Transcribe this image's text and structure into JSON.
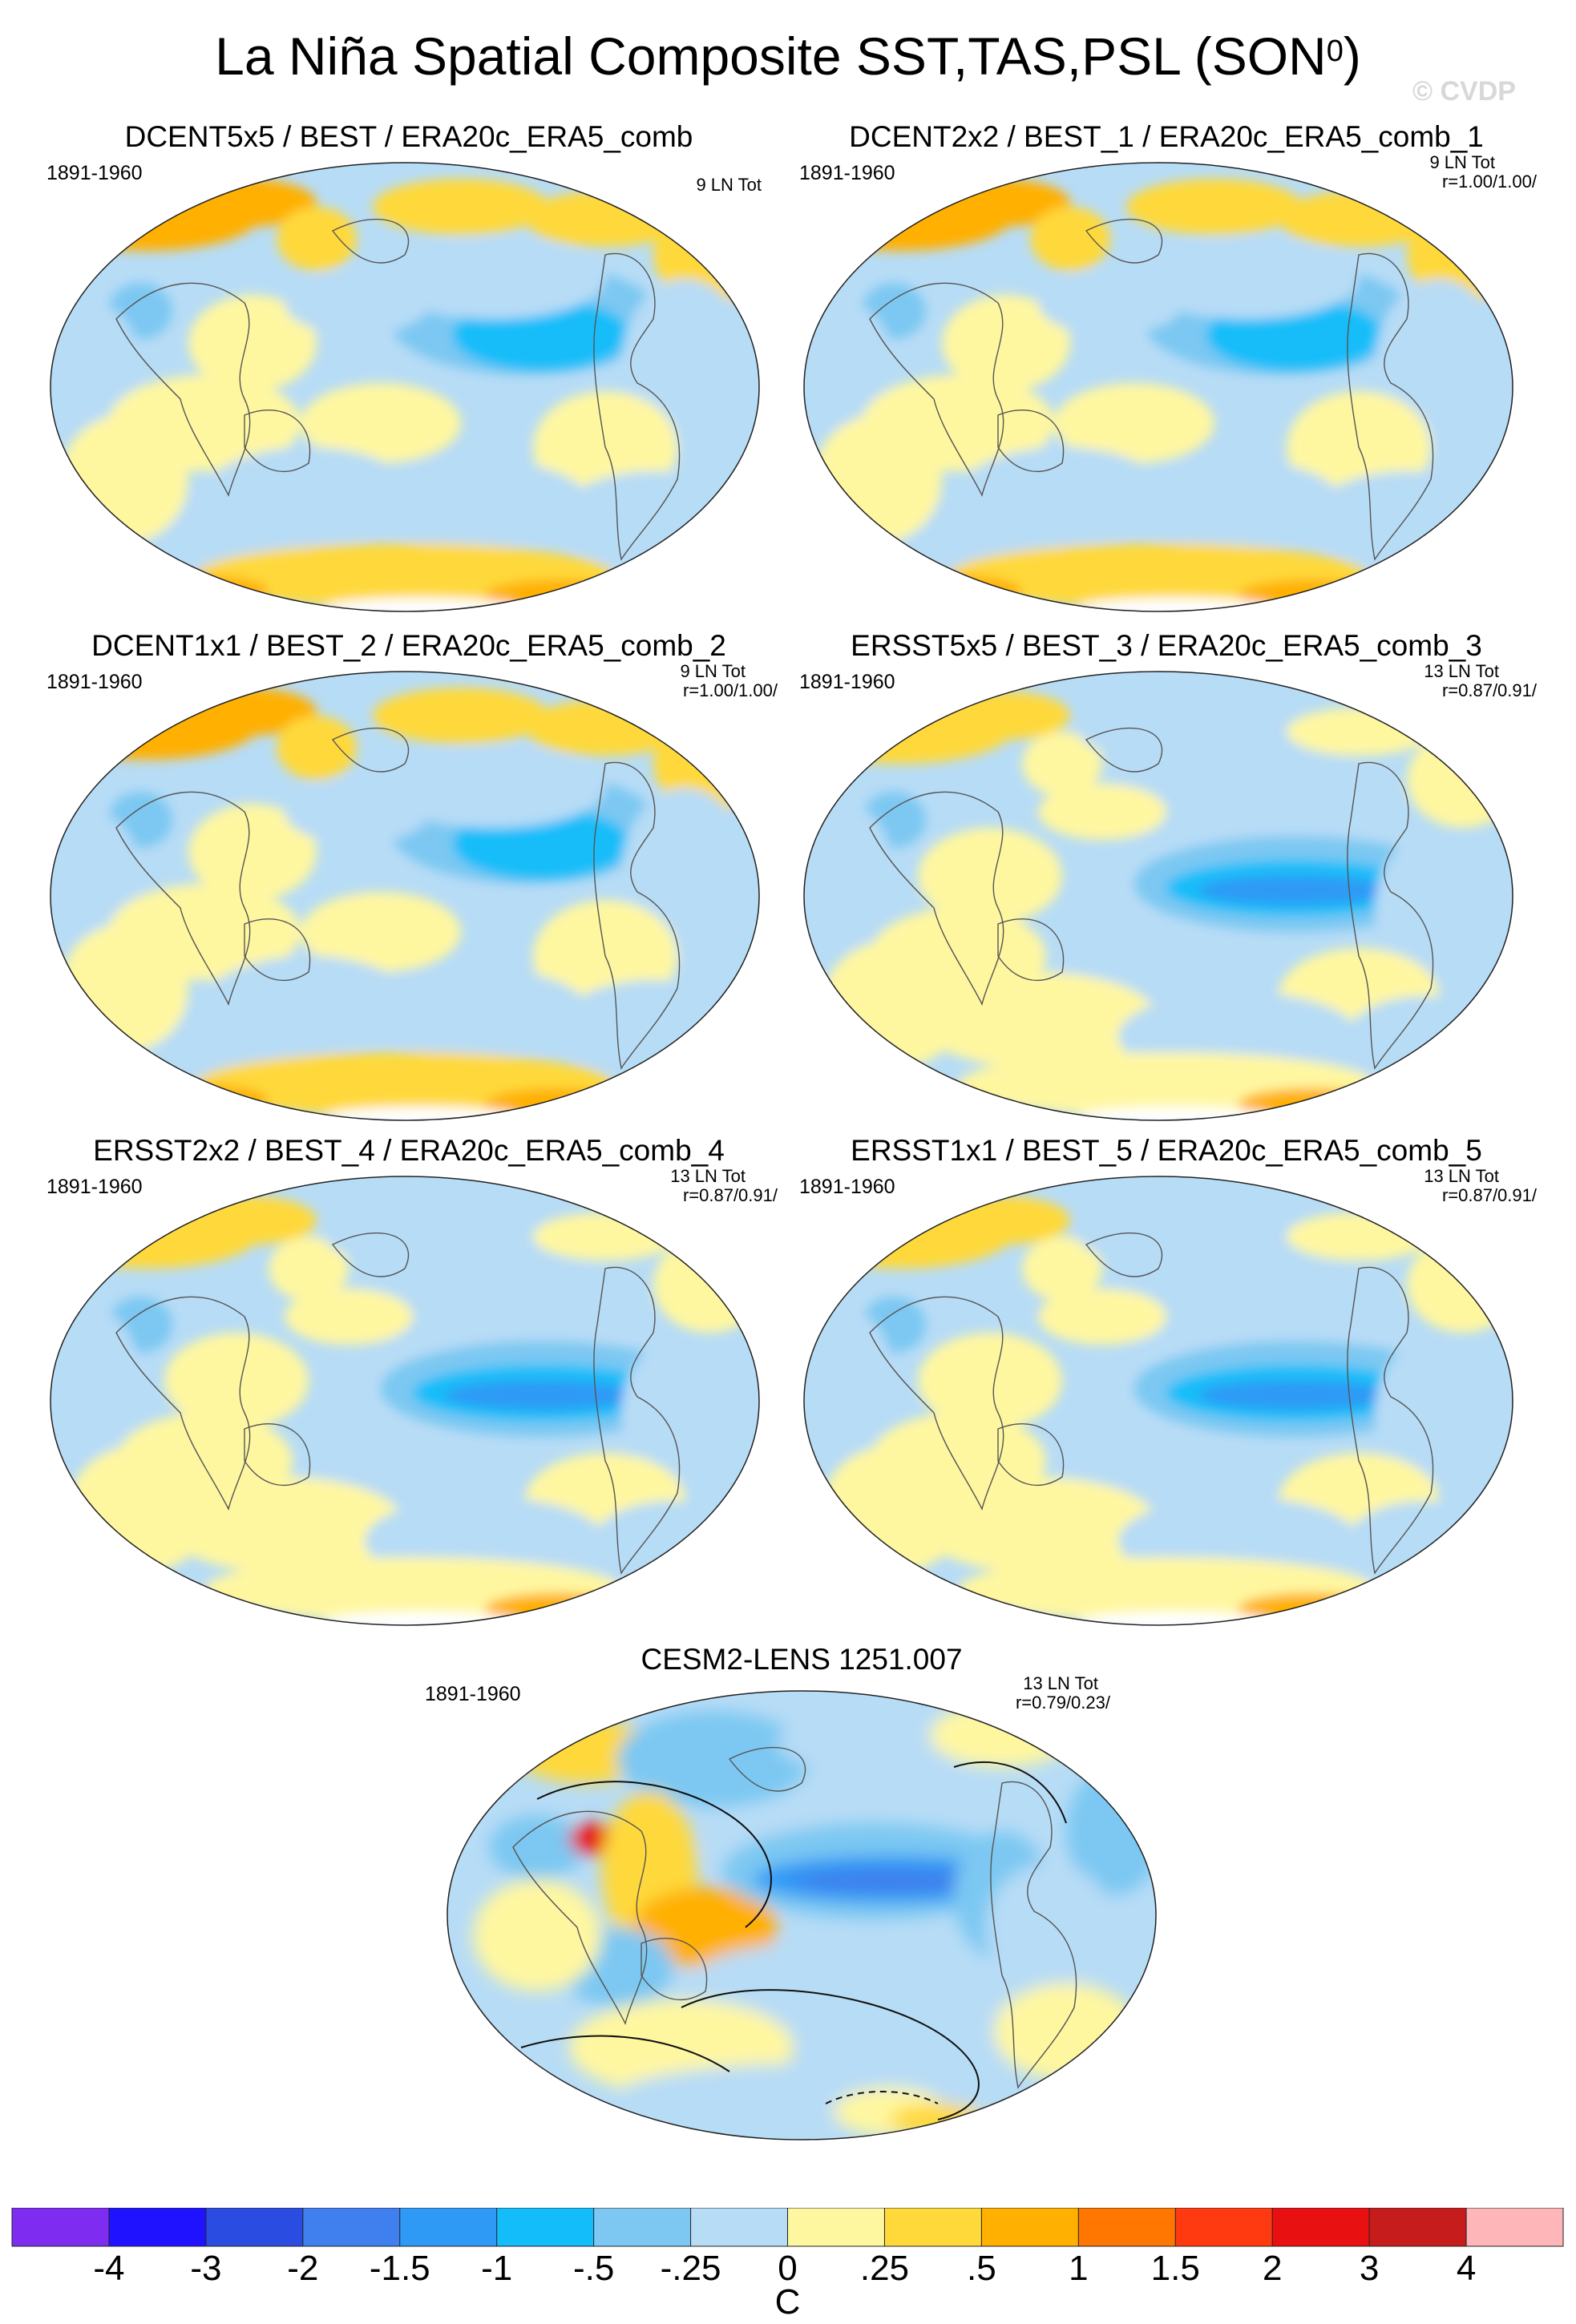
{
  "title": {
    "main": "La Niña Spatial Composite SST,TAS,PSL (SON",
    "superscript": "0",
    "close": ")"
  },
  "watermark": "© CVDP",
  "panels": [
    {
      "title": "DCENT5x5 / BEST / ERA20c_ERA5_comb",
      "period": "1891-1960",
      "count": "9 LN Tot",
      "corr": ""
    },
    {
      "title": "DCENT2x2 / BEST_1 / ERA20c_ERA5_comb_1",
      "period": "1891-1960",
      "count": "9 LN Tot",
      "corr": "r=1.00/1.00/"
    },
    {
      "title": "DCENT1x1 / BEST_2 / ERA20c_ERA5_comb_2",
      "period": "1891-1960",
      "count": "9 LN Tot",
      "corr": "r=1.00/1.00/"
    },
    {
      "title": "ERSST5x5 / BEST_3 / ERA20c_ERA5_comb_3",
      "period": "1891-1960",
      "count": "13 LN Tot",
      "corr": "r=0.87/0.91/"
    },
    {
      "title": "ERSST2x2 / BEST_4 / ERA20c_ERA5_comb_4",
      "period": "1891-1960",
      "count": "13 LN Tot",
      "corr": "r=0.87/0.91/"
    },
    {
      "title": "ERSST1x1 / BEST_5 / ERA20c_ERA5_comb_5",
      "period": "1891-1960",
      "count": "13 LN Tot",
      "corr": "r=0.87/0.91/"
    },
    {
      "title": "CESM2-LENS 1251.007",
      "period": "1891-1960",
      "count": "13 LN Tot",
      "corr": "r=0.79/0.23/"
    }
  ],
  "chart_data": {
    "type": "heatmap",
    "title": "La Niña Spatial Composite SST,TAS,PSL (SON0)",
    "colorbar": {
      "unit": "C",
      "levels": [
        "-4",
        "-3",
        "-2",
        "-1.5",
        "-1",
        "-.5",
        "-.25",
        "0",
        ".25",
        ".5",
        "1",
        "1.5",
        "2",
        "3",
        "4"
      ],
      "colors": [
        "#7e2cf0",
        "#1e12ff",
        "#2a4ce0",
        "#3f7fee",
        "#2f9af5",
        "#12bdf9",
        "#7cc8f2",
        "#b7dcf6",
        "#fff7a0",
        "#ffd93a",
        "#ffb000",
        "#ff7700",
        "#ff3a10",
        "#e81010",
        "#c61c1c",
        "#ffb6b9"
      ]
    }
  }
}
